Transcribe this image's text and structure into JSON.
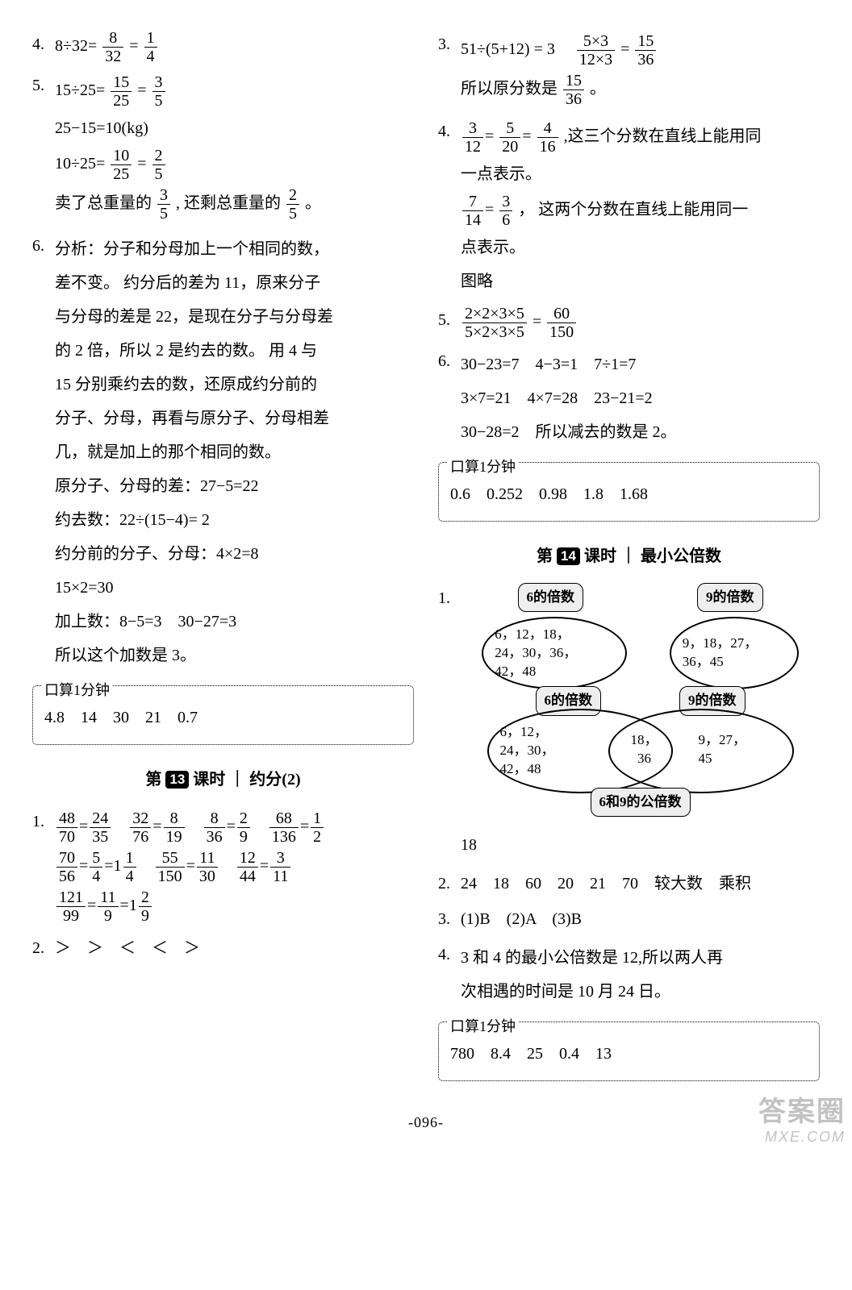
{
  "left": {
    "q4": {
      "n": "4.",
      "expr_pre": "8÷32=",
      "f1n": "8",
      "f1d": "32",
      "eq": "=",
      "f2n": "1",
      "f2d": "4"
    },
    "q5": {
      "n": "5.",
      "l1_pre": "15÷25=",
      "l1_f1n": "15",
      "l1_f1d": "25",
      "l1_eq": "=",
      "l1_f2n": "3",
      "l1_f2d": "5",
      "l2": "25−15=10(kg)",
      "l3_pre": "10÷25=",
      "l3_f1n": "10",
      "l3_f1d": "25",
      "l3_eq": "=",
      "l3_f2n": "2",
      "l3_f2d": "5",
      "l4_a": "卖了总重量的",
      "l4_f1n": "3",
      "l4_f1d": "5",
      "l4_b": ",  还剩总重量的",
      "l4_f2n": "2",
      "l4_f2d": "5",
      "l4_c": "。"
    },
    "q6": {
      "n": "6.",
      "t1": "分析：分子和分母加上一个相同的数，",
      "t2": "差不变。 约分后的差为 11，原来分子",
      "t3": "与分母的差是 22，是现在分子与分母差",
      "t4": "的 2 倍，所以 2 是约去的数。 用 4 与",
      "t5": "15 分别乘约去的数，还原成约分前的",
      "t6": "分子、分母，再看与原分子、分母相差",
      "t7": "几，就是加上的那个相同的数。",
      "t8": "原分子、分母的差：27−5=22",
      "t9": "约去数：22÷(15−4)= 2",
      "t10": "约分前的分子、分母：4×2=8",
      "t11": "15×2=30",
      "t12": "加上数：8−5=3　30−27=3",
      "t13": "所以这个加数是 3。"
    },
    "mm1": {
      "title": "口算1分钟",
      "vals": "4.8　14　30　21　0.7"
    },
    "sec13": {
      "before": "第",
      "badge": "13",
      "after": "课时 ｜ 约分(2)"
    },
    "b1": {
      "n": "1.",
      "r1": [
        {
          "an": "48",
          "ad": "70",
          "bn": "24",
          "bd": "35"
        },
        {
          "an": "32",
          "ad": "76",
          "bn": "8",
          "bd": "19"
        },
        {
          "an": "8",
          "ad": "36",
          "bn": "2",
          "bd": "9"
        },
        {
          "an": "68",
          "ad": "136",
          "bn": "1",
          "bd": "2"
        }
      ],
      "r2": [
        {
          "an": "70",
          "ad": "56",
          "bn": "5",
          "bd": "4",
          "tail": "=1",
          "tn": "1",
          "td": "4"
        },
        {
          "an": "55",
          "ad": "150",
          "bn": "11",
          "bd": "30"
        },
        {
          "an": "12",
          "ad": "44",
          "bn": "3",
          "bd": "11"
        }
      ],
      "r3": {
        "an": "121",
        "ad": "99",
        "bn": "11",
        "bd": "9",
        "tail": "=1",
        "tn": "2",
        "td": "9"
      }
    },
    "b2": {
      "n": "2.",
      "vals": "＞　＞　＜　＜　＞"
    }
  },
  "right": {
    "q3": {
      "n": "3.",
      "pre": "51÷(5+12) = 3　",
      "f1n": "5×3",
      "f1d": "12×3",
      "eq": "=",
      "f2n": "15",
      "f2d": "36",
      "t2a": "所以原分数是",
      "t2n": "15",
      "t2d": "36",
      "t2b": "。"
    },
    "q4": {
      "n": "4.",
      "f1n": "3",
      "f1d": "12",
      "f2n": "5",
      "f2d": "20",
      "f3n": "4",
      "f3d": "16",
      "t1": ",这三个分数在直线上能用同",
      "t2": "一点表示。",
      "g1n": "7",
      "g1d": "14",
      "g2n": "3",
      "g2d": "6",
      "t3": "， 这两个分数在直线上能用同一",
      "t4": "点表示。",
      "t5": "图略"
    },
    "q5": {
      "n": "5.",
      "an": "2×2×3×5",
      "ad": "5×2×3×5",
      "eq": "=",
      "bn": "60",
      "bd": "150"
    },
    "q6": {
      "n": "6.",
      "l1": "30−23=7　4−3=1　7÷1=7",
      "l2": "3×7=21　4×7=28　23−21=2",
      "l3": "30−28=2　所以减去的数是 2。"
    },
    "mm2": {
      "title": "口算1分钟",
      "vals": "0.6　0.252　0.98　1.8　1.68"
    },
    "sec14": {
      "before": "第",
      "badge": "14",
      "after": "课时 ｜ 最小公倍数"
    },
    "c1": {
      "n": "1.",
      "lblA": "6的倍数",
      "lblB": "9的倍数",
      "ovalA": "6，12，18，\n24，30，36，\n42，48",
      "ovalB": "9，18，27，\n36，45",
      "vennLeft": "6，12，\n24，30，\n42，48",
      "vennMid": "18，\n36",
      "vennRight": "9，27，\n45",
      "lblC": "6和9的公倍数",
      "ans": "18"
    },
    "c2": {
      "n": "2.",
      "vals": "24　18　60　20　21　70　较大数　乘积"
    },
    "c3": {
      "n": "3.",
      "vals": "(1)B　(2)A　(3)B"
    },
    "c4": {
      "n": "4.",
      "l1": "3 和 4 的最小公倍数是 12,所以两人再",
      "l2": "次相遇的时间是 10 月 24 日。"
    },
    "mm3": {
      "title": "口算1分钟",
      "vals": "780　8.4　25　0.4　13"
    }
  },
  "pagefoot": "-096-",
  "watermark": {
    "line1": "答案圈",
    "line2": "MXE.COM"
  }
}
